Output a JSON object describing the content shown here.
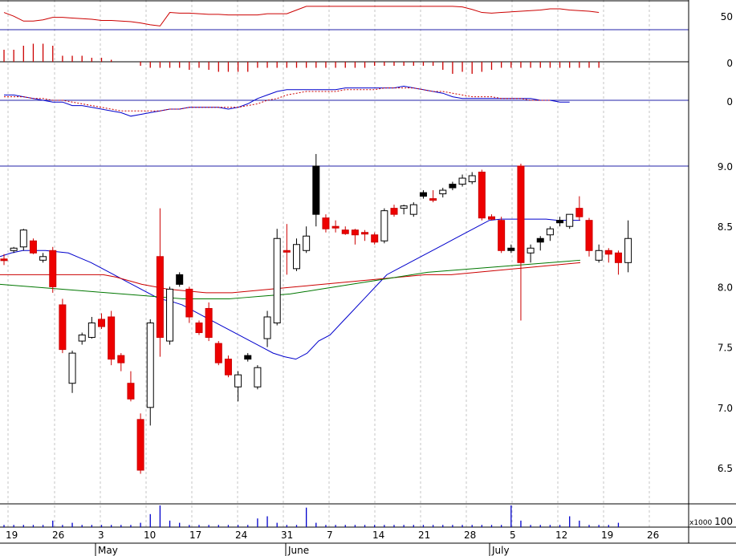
{
  "chart_data": {
    "type": "candlestick",
    "x_tick_labels": [
      "19",
      "26",
      "3",
      "10",
      "17",
      "24",
      "31",
      "7",
      "14",
      "21",
      "28",
      "5",
      "12",
      "19",
      "26"
    ],
    "month_labels": [
      "May",
      "June",
      "July"
    ],
    "indicator_a": {
      "type": "line",
      "ticks": [
        "50"
      ],
      "reference_line": 50,
      "values": [
        48,
        42,
        34,
        34,
        36,
        40,
        40,
        39,
        38,
        37,
        35,
        35,
        34,
        33,
        31,
        28,
        26,
        48,
        47,
        47,
        46,
        45,
        45,
        44,
        44,
        44,
        44,
        46,
        46,
        46,
        52,
        58,
        58,
        58,
        58,
        58,
        58,
        58,
        58,
        58,
        58,
        58,
        58,
        58,
        58,
        58,
        58,
        57,
        53,
        48,
        47,
        48,
        49,
        50,
        51,
        52,
        54,
        54,
        52,
        51,
        50,
        48
      ]
    },
    "indicator_b": {
      "type": "bar",
      "ticks": [
        "0"
      ],
      "values": [
        0.6,
        0.6,
        0.8,
        0.9,
        0.9,
        0.8,
        0.3,
        0.3,
        0.3,
        0.2,
        0.2,
        0.1,
        0,
        0,
        -0.2,
        -0.3,
        -0.3,
        -0.3,
        -0.3,
        -0.4,
        -0.3,
        -0.4,
        -0.5,
        -0.5,
        -0.5,
        -0.5,
        -0.3,
        -0.3,
        -0.3,
        -0.3,
        -0.3,
        -0.3,
        -0.3,
        -0.3,
        -0.3,
        -0.3,
        -0.3,
        -0.3,
        -0.2,
        -0.2,
        -0.2,
        -0.2,
        -0.2,
        -0.2,
        -0.2,
        -0.4,
        -0.6,
        -0.5,
        -0.6,
        -0.5,
        -0.4,
        -0.3,
        -0.3,
        -0.3,
        -0.3,
        -0.3,
        -0.3,
        -0.3,
        -0.3,
        -0.3,
        -0.3,
        -0.3
      ]
    },
    "indicator_c": {
      "type": "line",
      "ticks": [
        "0"
      ],
      "series": [
        {
          "color": "#0000cc",
          "values": [
            0.3,
            0.3,
            0.2,
            0.1,
            0.0,
            -0.1,
            -0.1,
            -0.3,
            -0.3,
            -0.4,
            -0.5,
            -0.6,
            -0.7,
            -0.9,
            -0.8,
            -0.7,
            -0.6,
            -0.5,
            -0.5,
            -0.4,
            -0.4,
            -0.4,
            -0.4,
            -0.5,
            -0.4,
            -0.2,
            0.1,
            0.3,
            0.5,
            0.6,
            0.6,
            0.6,
            0.6,
            0.6,
            0.6,
            0.7,
            0.7,
            0.7,
            0.7,
            0.7,
            0.7,
            0.8,
            0.7,
            0.6,
            0.5,
            0.4,
            0.2,
            0.1,
            0.1,
            0.1,
            0.1,
            0.1,
            0.1,
            0.1,
            0.1,
            0.0,
            0.0,
            -0.1,
            -0.1
          ]
        },
        {
          "color": "#cc0000",
          "dashed": true,
          "values": [
            0.2,
            0.2,
            0.2,
            0.1,
            0.1,
            0.0,
            0.0,
            -0.1,
            -0.2,
            -0.3,
            -0.4,
            -0.5,
            -0.6,
            -0.6,
            -0.6,
            -0.6,
            -0.6,
            -0.5,
            -0.5,
            -0.4,
            -0.4,
            -0.4,
            -0.4,
            -0.4,
            -0.4,
            -0.3,
            -0.2,
            0.0,
            0.1,
            0.3,
            0.4,
            0.5,
            0.5,
            0.5,
            0.5,
            0.6,
            0.6,
            0.6,
            0.6,
            0.7,
            0.7,
            0.7,
            0.7,
            0.6,
            0.5,
            0.5,
            0.4,
            0.3,
            0.2,
            0.2,
            0.2,
            0.1,
            0.1,
            0.1,
            0.0,
            0.0,
            0.0
          ]
        }
      ]
    },
    "price": {
      "type": "candlestick",
      "ticks": [
        "9.0",
        "8.5",
        "8.0",
        "7.5",
        "7.0",
        "6.5"
      ],
      "ylim": [
        6.2,
        9.3
      ],
      "reference_line": 9.0,
      "candles": [
        {
          "o": 8.23,
          "h": 8.27,
          "l": 8.18,
          "c": 8.23,
          "k": "red"
        },
        {
          "o": 8.3,
          "h": 8.33,
          "l": 8.28,
          "c": 8.32,
          "k": "open"
        },
        {
          "o": 8.33,
          "h": 8.48,
          "l": 8.3,
          "c": 8.47,
          "k": "open"
        },
        {
          "o": 8.38,
          "h": 8.4,
          "l": 8.27,
          "c": 8.28,
          "k": "red"
        },
        {
          "o": 8.25,
          "h": 8.28,
          "l": 8.2,
          "c": 8.22,
          "k": "open"
        },
        {
          "o": 8.3,
          "h": 8.33,
          "l": 7.95,
          "c": 8.0,
          "k": "red"
        },
        {
          "o": 7.85,
          "h": 7.9,
          "l": 7.45,
          "c": 7.48,
          "k": "red"
        },
        {
          "o": 7.2,
          "h": 7.47,
          "l": 7.12,
          "c": 7.45,
          "k": "open"
        },
        {
          "o": 7.55,
          "h": 7.62,
          "l": 7.52,
          "c": 7.6,
          "k": "open"
        },
        {
          "o": 7.58,
          "h": 7.75,
          "l": 7.57,
          "c": 7.7,
          "k": "open"
        },
        {
          "o": 7.73,
          "h": 7.78,
          "l": 7.65,
          "c": 7.67,
          "k": "red"
        },
        {
          "o": 7.75,
          "h": 7.8,
          "l": 7.35,
          "c": 7.4,
          "k": "red"
        },
        {
          "o": 7.43,
          "h": 7.45,
          "l": 7.3,
          "c": 7.37,
          "k": "red"
        },
        {
          "o": 7.2,
          "h": 7.3,
          "l": 7.05,
          "c": 7.07,
          "k": "red"
        },
        {
          "o": 6.9,
          "h": 6.95,
          "l": 6.45,
          "c": 6.48,
          "k": "red"
        },
        {
          "o": 7.0,
          "h": 7.73,
          "l": 6.85,
          "c": 7.7,
          "k": "open"
        },
        {
          "o": 8.25,
          "h": 8.65,
          "l": 7.42,
          "c": 7.58,
          "k": "red"
        },
        {
          "o": 7.55,
          "h": 8.0,
          "l": 7.52,
          "c": 7.98,
          "k": "open"
        },
        {
          "o": 8.1,
          "h": 8.12,
          "l": 8.0,
          "c": 8.02,
          "k": "black"
        },
        {
          "o": 7.98,
          "h": 8.0,
          "l": 7.7,
          "c": 7.75,
          "k": "red"
        },
        {
          "o": 7.7,
          "h": 7.72,
          "l": 7.6,
          "c": 7.62,
          "k": "red"
        },
        {
          "o": 7.82,
          "h": 7.87,
          "l": 7.55,
          "c": 7.58,
          "k": "red"
        },
        {
          "o": 7.53,
          "h": 7.55,
          "l": 7.35,
          "c": 7.37,
          "k": "red"
        },
        {
          "o": 7.4,
          "h": 7.43,
          "l": 7.25,
          "c": 7.27,
          "k": "red"
        },
        {
          "o": 7.17,
          "h": 7.3,
          "l": 7.05,
          "c": 7.27,
          "k": "open"
        },
        {
          "o": 7.43,
          "h": 7.45,
          "l": 7.38,
          "c": 7.4,
          "k": "black"
        },
        {
          "o": 7.17,
          "h": 7.35,
          "l": 7.15,
          "c": 7.33,
          "k": "open"
        },
        {
          "o": 7.57,
          "h": 7.8,
          "l": 7.5,
          "c": 7.75,
          "k": "open"
        },
        {
          "o": 7.7,
          "h": 8.48,
          "l": 7.68,
          "c": 8.4,
          "k": "open"
        },
        {
          "o": 8.3,
          "h": 8.52,
          "l": 8.1,
          "c": 8.3,
          "k": "red"
        },
        {
          "o": 8.15,
          "h": 8.4,
          "l": 8.13,
          "c": 8.35,
          "k": "open"
        },
        {
          "o": 8.3,
          "h": 8.5,
          "l": 8.28,
          "c": 8.42,
          "k": "open"
        },
        {
          "o": 8.6,
          "h": 9.1,
          "l": 8.5,
          "c": 9.0,
          "k": "black"
        },
        {
          "o": 8.57,
          "h": 8.6,
          "l": 8.45,
          "c": 8.48,
          "k": "red"
        },
        {
          "o": 8.5,
          "h": 8.55,
          "l": 8.45,
          "c": 8.5,
          "k": "red"
        },
        {
          "o": 8.47,
          "h": 8.5,
          "l": 8.43,
          "c": 8.44,
          "k": "red"
        },
        {
          "o": 8.47,
          "h": 8.48,
          "l": 8.35,
          "c": 8.43,
          "k": "red"
        },
        {
          "o": 8.45,
          "h": 8.47,
          "l": 8.38,
          "c": 8.44,
          "k": "red"
        },
        {
          "o": 8.43,
          "h": 8.45,
          "l": 8.35,
          "c": 8.37,
          "k": "red"
        },
        {
          "o": 8.38,
          "h": 8.65,
          "l": 8.36,
          "c": 8.63,
          "k": "open"
        },
        {
          "o": 8.65,
          "h": 8.68,
          "l": 8.58,
          "c": 8.6,
          "k": "red"
        },
        {
          "o": 8.65,
          "h": 8.68,
          "l": 8.6,
          "c": 8.67,
          "k": "open"
        },
        {
          "o": 8.6,
          "h": 8.7,
          "l": 8.58,
          "c": 8.68,
          "k": "open"
        },
        {
          "o": 8.78,
          "h": 8.8,
          "l": 8.73,
          "c": 8.75,
          "k": "black"
        },
        {
          "o": 8.73,
          "h": 8.8,
          "l": 8.7,
          "c": 8.72,
          "k": "red"
        },
        {
          "o": 8.77,
          "h": 8.82,
          "l": 8.74,
          "c": 8.8,
          "k": "open"
        },
        {
          "o": 8.82,
          "h": 8.87,
          "l": 8.8,
          "c": 8.85,
          "k": "black"
        },
        {
          "o": 8.85,
          "h": 8.93,
          "l": 8.83,
          "c": 8.9,
          "k": "open"
        },
        {
          "o": 8.92,
          "h": 8.95,
          "l": 8.85,
          "c": 8.87,
          "k": "open"
        },
        {
          "o": 8.95,
          "h": 8.97,
          "l": 8.55,
          "c": 8.57,
          "k": "red"
        },
        {
          "o": 8.58,
          "h": 8.6,
          "l": 8.55,
          "c": 8.56,
          "k": "red"
        },
        {
          "o": 8.55,
          "h": 8.58,
          "l": 8.28,
          "c": 8.3,
          "k": "red"
        },
        {
          "o": 8.32,
          "h": 8.35,
          "l": 8.28,
          "c": 8.3,
          "k": "black"
        },
        {
          "o": 9.0,
          "h": 9.02,
          "l": 7.72,
          "c": 8.2,
          "k": "red"
        },
        {
          "o": 8.28,
          "h": 8.35,
          "l": 8.2,
          "c": 8.32,
          "k": "open"
        },
        {
          "o": 8.37,
          "h": 8.42,
          "l": 8.3,
          "c": 8.4,
          "k": "black"
        },
        {
          "o": 8.43,
          "h": 8.5,
          "l": 8.38,
          "c": 8.48,
          "k": "open"
        },
        {
          "o": 8.55,
          "h": 8.58,
          "l": 8.5,
          "c": 8.53,
          "k": "black"
        },
        {
          "o": 8.5,
          "h": 8.6,
          "l": 8.48,
          "c": 8.6,
          "k": "open"
        },
        {
          "o": 8.65,
          "h": 8.75,
          "l": 8.55,
          "c": 8.58,
          "k": "red"
        },
        {
          "o": 8.55,
          "h": 8.57,
          "l": 8.25,
          "c": 8.3,
          "k": "red"
        },
        {
          "o": 8.22,
          "h": 8.35,
          "l": 8.2,
          "c": 8.3,
          "k": "open"
        },
        {
          "o": 8.3,
          "h": 8.32,
          "l": 8.2,
          "c": 8.27,
          "k": "red"
        },
        {
          "o": 8.28,
          "h": 8.3,
          "l": 8.1,
          "c": 8.2,
          "k": "red"
        },
        {
          "o": 8.2,
          "h": 8.55,
          "l": 8.12,
          "c": 8.4,
          "k": "open"
        }
      ],
      "ma_series": [
        {
          "color": "#0000cc",
          "values": [
            8.25,
            8.28,
            8.3,
            8.3,
            8.3,
            8.29,
            8.28,
            8.24,
            8.2,
            8.15,
            8.1,
            8.05,
            8.0,
            7.95,
            7.9,
            7.88,
            7.85,
            7.8,
            7.75,
            7.7,
            7.65,
            7.6,
            7.55,
            7.5,
            7.45,
            7.42,
            7.4,
            7.45,
            7.55,
            7.6,
            7.7,
            7.8,
            7.9,
            8.0,
            8.1,
            8.15,
            8.2,
            8.25,
            8.3,
            8.35,
            8.4,
            8.45,
            8.5,
            8.55,
            8.56,
            8.56,
            8.56,
            8.56,
            8.56,
            8.55,
            8.55,
            8.55
          ]
        },
        {
          "color": "#cc0000",
          "values": [
            8.1,
            8.1,
            8.1,
            8.1,
            8.1,
            8.1,
            8.1,
            8.1,
            8.1,
            8.08,
            8.05,
            8.02,
            8.0,
            7.98,
            7.97,
            7.96,
            7.95,
            7.95,
            7.95,
            7.96,
            7.97,
            7.98,
            7.99,
            8.0,
            8.01,
            8.02,
            8.03,
            8.04,
            8.05,
            8.06,
            8.07,
            8.08,
            8.09,
            8.1,
            8.1,
            8.1,
            8.11,
            8.12,
            8.13,
            8.14,
            8.15,
            8.16,
            8.17,
            8.18,
            8.19,
            8.2
          ]
        },
        {
          "color": "#007700",
          "values": [
            8.02,
            8.01,
            8.0,
            7.99,
            7.98,
            7.97,
            7.96,
            7.95,
            7.94,
            7.93,
            7.92,
            7.91,
            7.9,
            7.9,
            7.9,
            7.9,
            7.91,
            7.92,
            7.93,
            7.94,
            7.96,
            7.98,
            8.0,
            8.02,
            8.04,
            8.06,
            8.08,
            8.1,
            8.12,
            8.13,
            8.14,
            8.15,
            8.16,
            8.17,
            8.18,
            8.19,
            8.2,
            8.21,
            8.22
          ]
        }
      ]
    },
    "volume": {
      "type": "bar",
      "unit_label": "x1000",
      "tick": "100",
      "values": [
        0.1,
        0.1,
        0.1,
        0.1,
        0.1,
        0.3,
        0.1,
        0.2,
        0.1,
        0.1,
        0.1,
        0.1,
        0.1,
        0.1,
        0.2,
        0.6,
        1.0,
        0.3,
        0.2,
        0.1,
        0.1,
        0.1,
        0.1,
        0.1,
        0.1,
        0.1,
        0.4,
        0.5,
        0.2,
        0.1,
        0.1,
        0.9,
        0.2,
        0.1,
        0.1,
        0.1,
        0.1,
        0.1,
        0.1,
        0.1,
        0.1,
        0.1,
        0.1,
        0.1,
        0.1,
        0.1,
        0.1,
        0.1,
        0.1,
        0.1,
        0.1,
        0.1,
        1.0,
        0.3,
        0.1,
        0.1,
        0.1,
        0.1,
        0.5,
        0.3,
        0.1,
        0.1,
        0.1,
        0.2
      ]
    }
  }
}
